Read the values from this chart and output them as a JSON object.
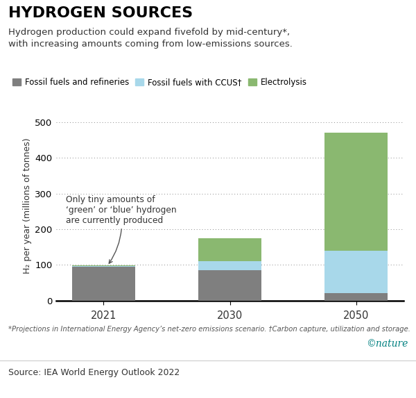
{
  "title": "HYDROGEN SOURCES",
  "subtitle": "Hydrogen production could expand fivefold by mid-century*,\nwith increasing amounts coming from low-emissions sources.",
  "years": [
    "2021",
    "2030",
    "2050"
  ],
  "fossil_fuels": [
    94,
    85,
    20
  ],
  "ccus": [
    2,
    25,
    120
  ],
  "electrolysis": [
    3,
    65,
    330
  ],
  "fossil_color": "#7f7f7f",
  "ccus_color": "#a8d8ea",
  "electrolysis_color": "#8ab870",
  "ylabel": "H₂ per year (millions of tonnes)",
  "ylim": [
    0,
    530
  ],
  "yticks": [
    0,
    100,
    200,
    300,
    400,
    500
  ],
  "annotation_text": "Only tiny amounts of\n‘green’ or ‘blue’ hydrogen\nare currently produced",
  "footnote": "*Projections in International Energy Agency’s net-zero emissions scenario. †Carbon capture, utilization and storage.",
  "source": "Source: IEA World Energy Outlook 2022",
  "nature_credit": "©nature",
  "legend_labels": [
    "Fossil fuels and refineries",
    "Fossil fuels with CCUS†",
    "Electrolysis"
  ],
  "background_color": "#ffffff",
  "title_fontsize": 16,
  "subtitle_fontsize": 9.5,
  "bar_width": 0.5
}
